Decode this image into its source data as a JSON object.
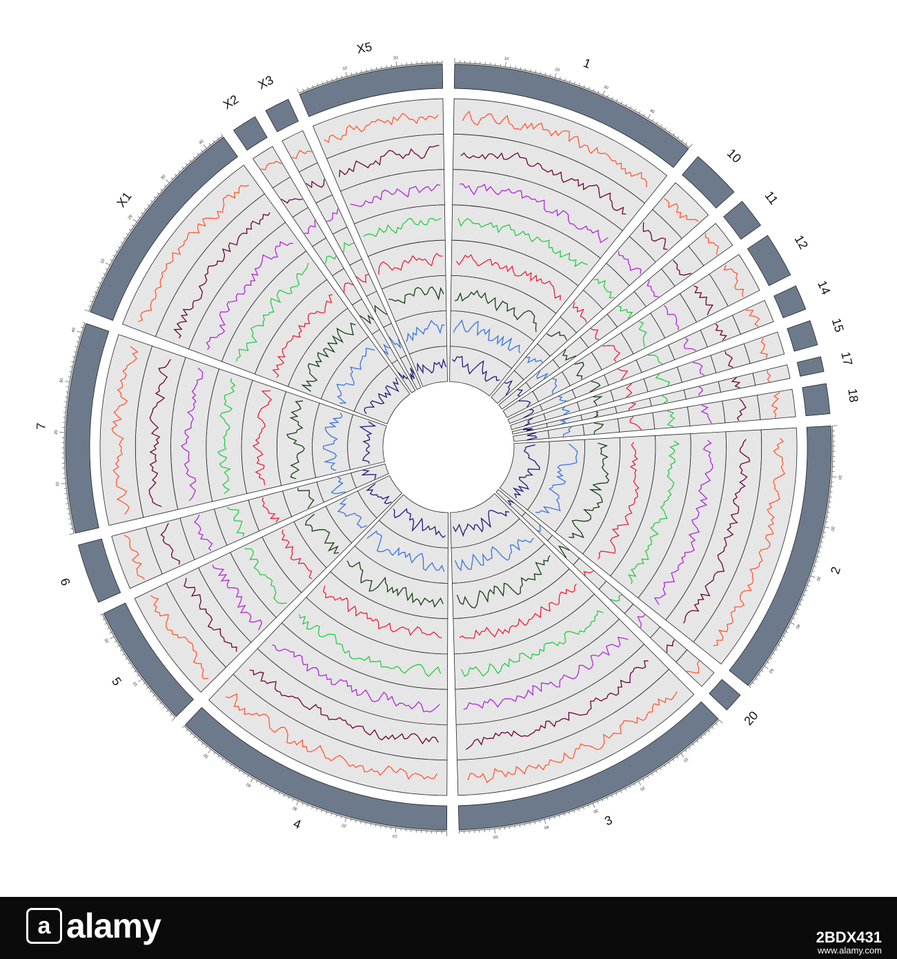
{
  "chart_data": {
    "type": "circos",
    "chromosomes": [
      {
        "name": "1",
        "length": 50,
        "ticks": [
          10,
          20,
          30,
          40
        ]
      },
      {
        "name": "10",
        "length": 10,
        "ticks": []
      },
      {
        "name": "11",
        "length": 6,
        "ticks": []
      },
      {
        "name": "12",
        "length": 9,
        "ticks": []
      },
      {
        "name": "14",
        "length": 5,
        "ticks": []
      },
      {
        "name": "15",
        "length": 5,
        "ticks": []
      },
      {
        "name": "17",
        "length": 3,
        "ticks": []
      },
      {
        "name": "18",
        "length": 6,
        "ticks": []
      },
      {
        "name": "2",
        "length": 55,
        "ticks": [
          10,
          20,
          30,
          40,
          50
        ]
      },
      {
        "name": "20",
        "length": 4,
        "ticks": []
      },
      {
        "name": "3",
        "length": 57,
        "ticks": [
          10,
          20,
          30,
          40,
          50
        ]
      },
      {
        "name": "4",
        "length": 57,
        "ticks": [
          10,
          20,
          30,
          40,
          50
        ]
      },
      {
        "name": "5",
        "length": 25,
        "ticks": [
          10,
          20
        ]
      },
      {
        "name": "6",
        "length": 12,
        "ticks": []
      },
      {
        "name": "7",
        "length": 42,
        "ticks": [
          10,
          20,
          30,
          40
        ]
      },
      {
        "name": "X1",
        "length": 44,
        "ticks": [
          10,
          20,
          30,
          40
        ]
      },
      {
        "name": "X2",
        "length": 5,
        "ticks": []
      },
      {
        "name": "X3",
        "length": 5,
        "ticks": []
      },
      {
        "name": "X5",
        "length": 29,
        "ticks": [
          10,
          20
        ]
      }
    ],
    "tracks": [
      {
        "color": "#ff5733"
      },
      {
        "color": "#6b0033"
      },
      {
        "color": "#b026d6"
      },
      {
        "color": "#22cc44"
      },
      {
        "color": "#e8203a"
      },
      {
        "color": "#153d14"
      },
      {
        "color": "#3a73d9"
      },
      {
        "color": "#1d1a78"
      }
    ],
    "colors": {
      "ideogram": "#6c7a8c",
      "track_background": "#e6e6e6",
      "track_border": "#222222"
    }
  },
  "footer": {
    "logo_text": "alamy",
    "logo_mark": "a",
    "image_id": "2BDX431",
    "url": "www.alamy.com"
  }
}
